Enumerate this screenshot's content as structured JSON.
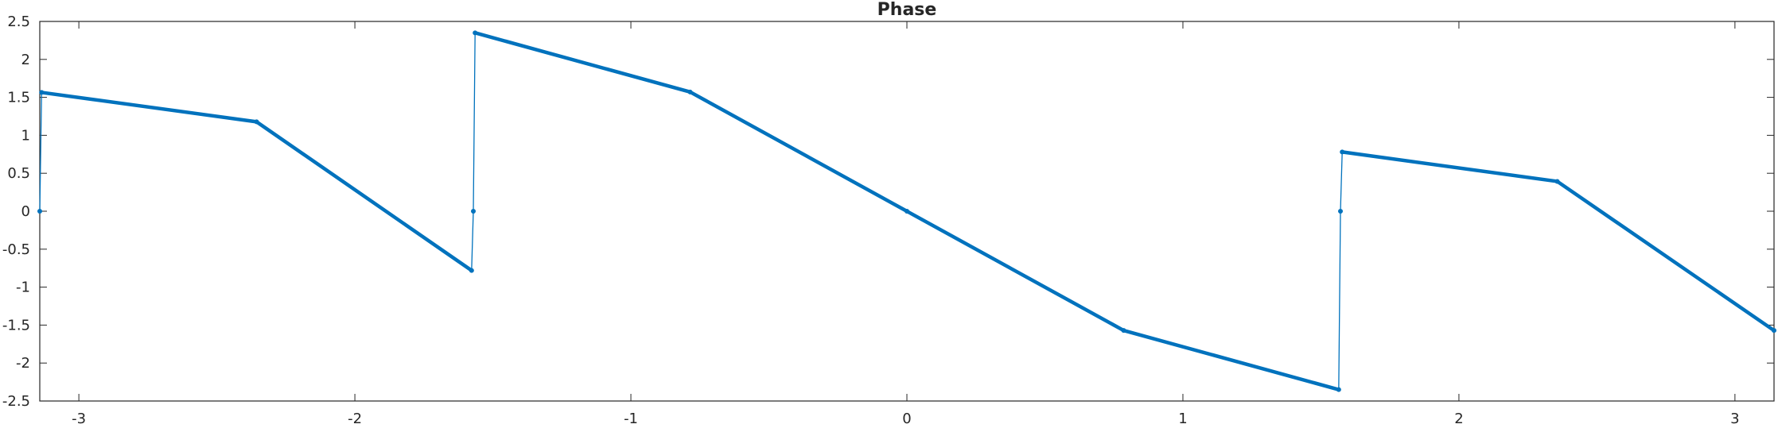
{
  "chart_data": {
    "type": "line",
    "title": "Phase",
    "xlabel": "",
    "ylabel": "",
    "xlim": [
      -3.14159,
      3.14159
    ],
    "ylim": [
      -2.5,
      2.5
    ],
    "x_ticks": [
      -3,
      -2,
      -1,
      0,
      1,
      2,
      3
    ],
    "x_tick_labels": [
      "-3",
      "-2",
      "-1",
      "0",
      "1",
      "2",
      "3"
    ],
    "y_ticks": [
      -2.5,
      -2,
      -1.5,
      -1,
      -0.5,
      0,
      0.5,
      1,
      1.5,
      2,
      2.5
    ],
    "y_tick_labels": [
      "-2.5",
      "-2",
      "-1.5",
      "-1",
      "-0.5",
      "0",
      "0.5",
      "1",
      "1.5",
      "2",
      "2.5"
    ],
    "grid": false,
    "box": true,
    "series": [
      {
        "color": "#0072BD",
        "marker": "dot",
        "x": [
          -3.1416,
          -3.135,
          -2.3562,
          -1.5771,
          -1.5708,
          -1.5645,
          -0.7854,
          0,
          0.7854,
          1.5645,
          1.5708,
          1.5771,
          2.3562,
          3.1416
        ],
        "y": [
          0,
          1.5645,
          1.178,
          -0.7803,
          0,
          2.3499,
          1.5708,
          0,
          -1.5708,
          -2.3499,
          0,
          0.7803,
          0.3927,
          -1.5708
        ]
      }
    ]
  }
}
